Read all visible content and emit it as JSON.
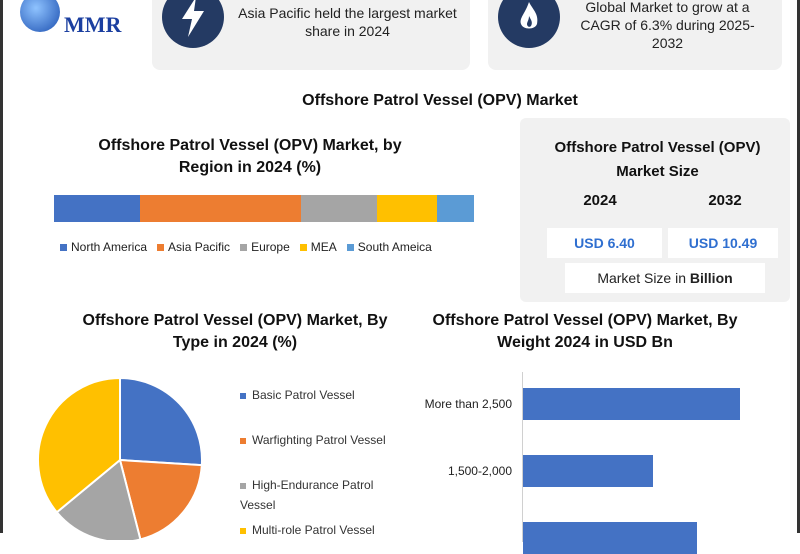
{
  "logo": {
    "text": "MMR"
  },
  "cards": [
    {
      "icon": "lightning-icon",
      "text": "Asia Pacific held the largest market share in 2024"
    },
    {
      "icon": "flame-icon",
      "text": "Global Market to grow at a CAGR of 6.3% during 2025-2032"
    }
  ],
  "main_title": "Offshore Patrol Vessel (OPV) Market",
  "market_size": {
    "title": "Offshore Patrol Vessel (OPV) Market Size",
    "years": [
      "2024",
      "2032"
    ],
    "values": [
      "USD 6.40",
      "USD 10.49"
    ],
    "unit_prefix": "Market Size in ",
    "unit_bold": "Billion"
  },
  "chart_data": [
    {
      "type": "bar",
      "stacked": true,
      "orientation": "horizontal",
      "title": "Offshore Patrol Vessel (OPV) Market, by Region in 2024 (%)",
      "legend": "bottom",
      "series": [
        {
          "name": "North America",
          "value": 20.5,
          "color": "#4472c4"
        },
        {
          "name": "Asia Pacific",
          "value": 38.3,
          "color": "#ed7d31"
        },
        {
          "name": "Europe",
          "value": 18.1,
          "color": "#a5a5a5"
        },
        {
          "name": "MEA",
          "value": 14.3,
          "color": "#ffc000"
        },
        {
          "name": "South Ameica",
          "value": 8.8,
          "color": "#5b9bd5"
        }
      ]
    },
    {
      "type": "pie",
      "title": "Offshore Patrol Vessel (OPV) Market, By Type in 2024 (%)",
      "legend": "right",
      "slices": [
        {
          "name": "Basic Patrol Vessel",
          "value": 26,
          "color": "#4472c4"
        },
        {
          "name": "Warfighting Patrol Vessel",
          "value": 20,
          "color": "#ed7d31"
        },
        {
          "name": "High-Endurance Patrol Vessel",
          "value": 18,
          "color": "#a5a5a5"
        },
        {
          "name": "Multi-role Patrol Vessel",
          "value": 36,
          "color": "#ffc000"
        }
      ]
    },
    {
      "type": "bar",
      "orientation": "horizontal",
      "title": "Offshore Patrol Vessel (OPV) Market, By Weight 2024 in USD Bn",
      "color": "#4472c4",
      "categories": [
        "More than 2,500",
        "1,500-2,000",
        ""
      ],
      "values": [
        100,
        60,
        80
      ]
    }
  ]
}
